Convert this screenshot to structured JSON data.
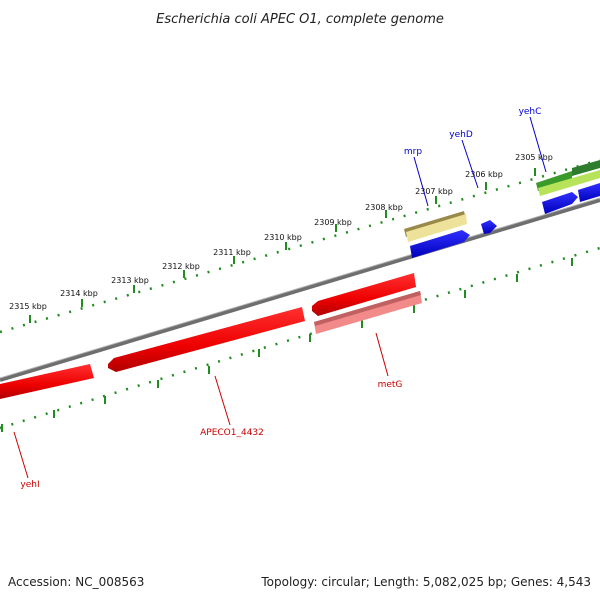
{
  "title": "Escherichia coli APEC O1, complete genome",
  "footer": {
    "accession": "Accession: NC_008563",
    "topology": "Topology: circular; Length: 5,082,025 bp; Genes: 4,543"
  },
  "colors": {
    "forward_gene": "#0000ee",
    "reverse_gene": "#ee0000",
    "reverse_gene_light": "#f28a8a",
    "rna_gene": "#e8e090",
    "green_feature": "#2e8b2e",
    "light_green_feature": "#9acd32",
    "tick": "#228b22",
    "backbone": "#7a7a7a"
  },
  "ruler": {
    "labels": [
      "2305 kbp",
      "2306 kbp",
      "2307 kbp",
      "2308 kbp",
      "2309 kbp",
      "2310 kbp",
      "2311 kbp",
      "2312 kbp",
      "2313 kbp",
      "2314 kbp",
      "2315 kbp"
    ]
  },
  "genes": {
    "yehC": "yehC",
    "yehD": "yehD",
    "mrp": "mrp",
    "metG": "metG",
    "apeco": "APECO1_4432",
    "yehI": "yehI"
  }
}
